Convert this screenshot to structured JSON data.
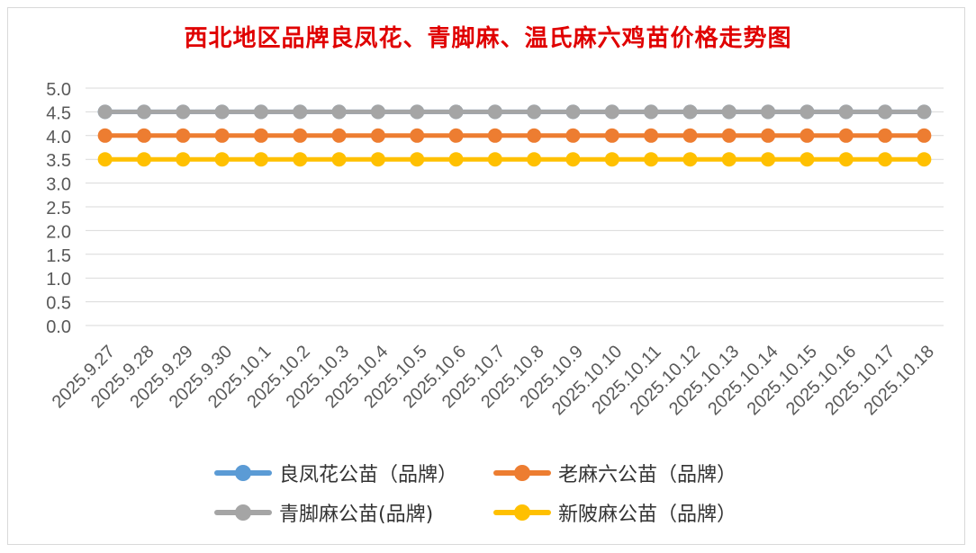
{
  "title": "西北地区品牌良凤花、青脚麻、温氏麻六鸡苗价格走势图",
  "chart_data": {
    "type": "line",
    "title": "西北地区品牌良凤花、青脚麻、温氏麻六鸡苗价格走势图",
    "categories": [
      "2025.9.27",
      "2025.9.28",
      "2025.9.29",
      "2025.9.30",
      "2025.10.1",
      "2025.10.2",
      "2025.10.3",
      "2025.10.4",
      "2025.10.5",
      "2025.10.6",
      "2025.10.7",
      "2025.10.8",
      "2025.10.9",
      "2025.10.10",
      "2025.10.11",
      "2025.10.12",
      "2025.10.13",
      "2025.10.14",
      "2025.10.15",
      "2025.10.16",
      "2025.10.17",
      "2025.10.18"
    ],
    "ylim": [
      0,
      5
    ],
    "yticks": [
      "5.0",
      "4.5",
      "4.0",
      "3.5",
      "3.0",
      "2.5",
      "2.0",
      "1.5",
      "1.0",
      "0.5",
      "0.0"
    ],
    "grid": true,
    "legend_position": "bottom",
    "series": [
      {
        "name": "良凤花公苗（品牌）",
        "color": "#5b9bd5",
        "values": [
          4.5,
          4.5,
          4.5,
          4.5,
          4.5,
          4.5,
          4.5,
          4.5,
          4.5,
          4.5,
          4.5,
          4.5,
          4.5,
          4.5,
          4.5,
          4.5,
          4.5,
          4.5,
          4.5,
          4.5,
          4.5,
          4.5
        ]
      },
      {
        "name": "老麻六公苗（品牌）",
        "color": "#ed7d31",
        "values": [
          4.0,
          4.0,
          4.0,
          4.0,
          4.0,
          4.0,
          4.0,
          4.0,
          4.0,
          4.0,
          4.0,
          4.0,
          4.0,
          4.0,
          4.0,
          4.0,
          4.0,
          4.0,
          4.0,
          4.0,
          4.0,
          4.0
        ]
      },
      {
        "name": "青脚麻公苗(品牌)",
        "color": "#a5a5a5",
        "values": [
          4.5,
          4.5,
          4.5,
          4.5,
          4.5,
          4.5,
          4.5,
          4.5,
          4.5,
          4.5,
          4.5,
          4.5,
          4.5,
          4.5,
          4.5,
          4.5,
          4.5,
          4.5,
          4.5,
          4.5,
          4.5,
          4.5
        ]
      },
      {
        "name": "新陂麻公苗（品牌）",
        "color": "#ffc000",
        "values": [
          3.5,
          3.5,
          3.5,
          3.5,
          3.5,
          3.5,
          3.5,
          3.5,
          3.5,
          3.5,
          3.5,
          3.5,
          3.5,
          3.5,
          3.5,
          3.5,
          3.5,
          3.5,
          3.5,
          3.5,
          3.5,
          3.5
        ]
      }
    ]
  }
}
